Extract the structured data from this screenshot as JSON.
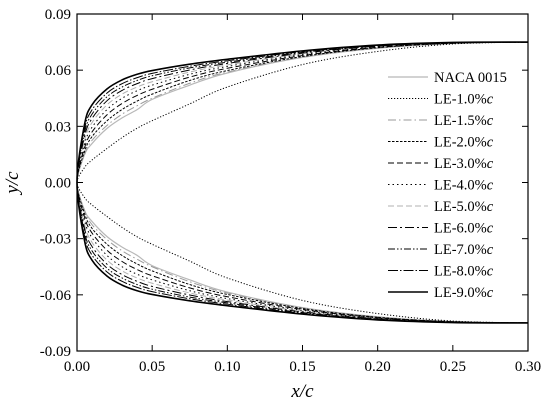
{
  "chart_data": {
    "type": "line",
    "xlabel": "x/c",
    "ylabel": "y/c",
    "xlim": [
      0,
      0.3
    ],
    "ylim": [
      -0.09,
      0.09
    ],
    "xticks": [
      "0.00",
      "0.05",
      "0.10",
      "0.15",
      "0.20",
      "0.25",
      "0.30"
    ],
    "yticks": [
      "0.09",
      "0.06",
      "0.03",
      "0.00",
      "-0.03",
      "-0.06",
      "-0.09"
    ],
    "grid": false,
    "legend_position": "right-center",
    "series": [
      {
        "name": "NACA 0015",
        "color": "#b8b8b8",
        "dash": "",
        "width": 1.2,
        "points": [
          [
            0.0,
            0.0
          ],
          [
            0.005,
            0.0148
          ],
          [
            0.01,
            0.0208
          ],
          [
            0.02,
            0.0289
          ],
          [
            0.03,
            0.0345
          ],
          [
            0.04,
            0.0389
          ],
          [
            0.05,
            0.0444
          ],
          [
            0.075,
            0.052
          ],
          [
            0.1,
            0.0585
          ],
          [
            0.15,
            0.0668
          ],
          [
            0.2,
            0.0717
          ],
          [
            0.25,
            0.0743
          ],
          [
            0.3,
            0.075
          ]
        ]
      },
      {
        "name": "LE-1.0%c",
        "color": "#000000",
        "dash": "1.2,1.8",
        "width": 1.0,
        "points": [
          [
            0.0,
            0.0
          ],
          [
            0.005,
            0.008
          ],
          [
            0.01,
            0.012
          ],
          [
            0.02,
            0.0182
          ],
          [
            0.03,
            0.024
          ],
          [
            0.04,
            0.029
          ],
          [
            0.05,
            0.033
          ],
          [
            0.075,
            0.042
          ],
          [
            0.1,
            0.051
          ],
          [
            0.15,
            0.063
          ],
          [
            0.2,
            0.07
          ],
          [
            0.25,
            0.074
          ],
          [
            0.3,
            0.075
          ]
        ]
      },
      {
        "name": "LE-1.5%c",
        "color": "#9a9a9a",
        "dash": "8,3,1.5,3",
        "width": 1.0,
        "points": [
          [
            0.0,
            0.0
          ],
          [
            0.005,
            0.015
          ],
          [
            0.01,
            0.0225
          ],
          [
            0.02,
            0.0305
          ],
          [
            0.03,
            0.0365
          ],
          [
            0.04,
            0.041
          ],
          [
            0.05,
            0.045
          ],
          [
            0.075,
            0.053
          ],
          [
            0.1,
            0.059
          ],
          [
            0.15,
            0.067
          ],
          [
            0.2,
            0.0718
          ],
          [
            0.25,
            0.0743
          ],
          [
            0.3,
            0.075
          ]
        ]
      },
      {
        "name": "LE-2.0%c",
        "color": "#000000",
        "dash": "2.5,1.5",
        "width": 1.0,
        "points": [
          [
            0.0,
            0.0
          ],
          [
            0.005,
            0.0165
          ],
          [
            0.01,
            0.0245
          ],
          [
            0.02,
            0.033
          ],
          [
            0.03,
            0.039
          ],
          [
            0.04,
            0.0435
          ],
          [
            0.05,
            0.0472
          ],
          [
            0.075,
            0.0545
          ],
          [
            0.1,
            0.0598
          ],
          [
            0.15,
            0.0673
          ],
          [
            0.2,
            0.072
          ],
          [
            0.25,
            0.0744
          ],
          [
            0.3,
            0.075
          ]
        ]
      },
      {
        "name": "LE-3.0%c",
        "color": "#000000",
        "dash": "6,3",
        "width": 1.0,
        "points": [
          [
            0.0,
            0.0
          ],
          [
            0.005,
            0.0185
          ],
          [
            0.01,
            0.027
          ],
          [
            0.02,
            0.0362
          ],
          [
            0.03,
            0.0422
          ],
          [
            0.04,
            0.0465
          ],
          [
            0.05,
            0.0498
          ],
          [
            0.075,
            0.0563
          ],
          [
            0.1,
            0.061
          ],
          [
            0.15,
            0.0678
          ],
          [
            0.2,
            0.0722
          ],
          [
            0.25,
            0.0744
          ],
          [
            0.3,
            0.075
          ]
        ]
      },
      {
        "name": "LE-4.0%c",
        "color": "#000000",
        "dash": "1.5,3",
        "width": 1.0,
        "points": [
          [
            0.0,
            0.0
          ],
          [
            0.005,
            0.0205
          ],
          [
            0.01,
            0.0295
          ],
          [
            0.02,
            0.039
          ],
          [
            0.03,
            0.045
          ],
          [
            0.04,
            0.049
          ],
          [
            0.05,
            0.052
          ],
          [
            0.075,
            0.0578
          ],
          [
            0.1,
            0.062
          ],
          [
            0.15,
            0.0683
          ],
          [
            0.2,
            0.0724
          ],
          [
            0.25,
            0.0745
          ],
          [
            0.3,
            0.075
          ]
        ]
      },
      {
        "name": "LE-5.0%c",
        "color": "#b0b0b0",
        "dash": "6,3",
        "width": 1.0,
        "points": [
          [
            0.0,
            0.0
          ],
          [
            0.005,
            0.0225
          ],
          [
            0.01,
            0.032
          ],
          [
            0.02,
            0.0415
          ],
          [
            0.03,
            0.0472
          ],
          [
            0.04,
            0.051
          ],
          [
            0.05,
            0.0538
          ],
          [
            0.075,
            0.059
          ],
          [
            0.1,
            0.0628
          ],
          [
            0.15,
            0.0687
          ],
          [
            0.2,
            0.0726
          ],
          [
            0.25,
            0.0746
          ],
          [
            0.3,
            0.075
          ]
        ]
      },
      {
        "name": "LE-6.0%c",
        "color": "#000000",
        "dash": "9,3,2,3",
        "width": 1.0,
        "points": [
          [
            0.0,
            0.0
          ],
          [
            0.005,
            0.0245
          ],
          [
            0.01,
            0.0342
          ],
          [
            0.02,
            0.0437
          ],
          [
            0.03,
            0.0492
          ],
          [
            0.04,
            0.0528
          ],
          [
            0.05,
            0.0555
          ],
          [
            0.075,
            0.0601
          ],
          [
            0.1,
            0.0636
          ],
          [
            0.15,
            0.0691
          ],
          [
            0.2,
            0.0728
          ],
          [
            0.25,
            0.0746
          ],
          [
            0.3,
            0.075
          ]
        ]
      },
      {
        "name": "LE-7.0%c",
        "color": "#000000",
        "dash": "7,2,1.5,2,1.5,2",
        "width": 1.0,
        "points": [
          [
            0.0,
            0.0
          ],
          [
            0.005,
            0.0265
          ],
          [
            0.01,
            0.0365
          ],
          [
            0.02,
            0.0458
          ],
          [
            0.03,
            0.051
          ],
          [
            0.04,
            0.0545
          ],
          [
            0.05,
            0.057
          ],
          [
            0.075,
            0.0612
          ],
          [
            0.1,
            0.0643
          ],
          [
            0.15,
            0.0695
          ],
          [
            0.2,
            0.073
          ],
          [
            0.25,
            0.0747
          ],
          [
            0.3,
            0.075
          ]
        ]
      },
      {
        "name": "LE-8.0%c",
        "color": "#000000",
        "dash": "10,2,1.5,2",
        "width": 1.0,
        "points": [
          [
            0.0,
            0.0
          ],
          [
            0.005,
            0.0285
          ],
          [
            0.01,
            0.0388
          ],
          [
            0.02,
            0.0478
          ],
          [
            0.03,
            0.0528
          ],
          [
            0.04,
            0.056
          ],
          [
            0.05,
            0.0583
          ],
          [
            0.075,
            0.0621
          ],
          [
            0.1,
            0.065
          ],
          [
            0.15,
            0.0699
          ],
          [
            0.2,
            0.0732
          ],
          [
            0.25,
            0.0747
          ],
          [
            0.3,
            0.075
          ]
        ]
      },
      {
        "name": "LE-9.0%c",
        "color": "#000000",
        "dash": "",
        "width": 1.6,
        "points": [
          [
            0.0,
            0.0
          ],
          [
            0.005,
            0.031
          ],
          [
            0.01,
            0.0415
          ],
          [
            0.02,
            0.05
          ],
          [
            0.03,
            0.0548
          ],
          [
            0.04,
            0.0578
          ],
          [
            0.05,
            0.0598
          ],
          [
            0.075,
            0.0632
          ],
          [
            0.1,
            0.0658
          ],
          [
            0.15,
            0.0703
          ],
          [
            0.2,
            0.0734
          ],
          [
            0.25,
            0.0748
          ],
          [
            0.3,
            0.075
          ]
        ]
      }
    ]
  }
}
